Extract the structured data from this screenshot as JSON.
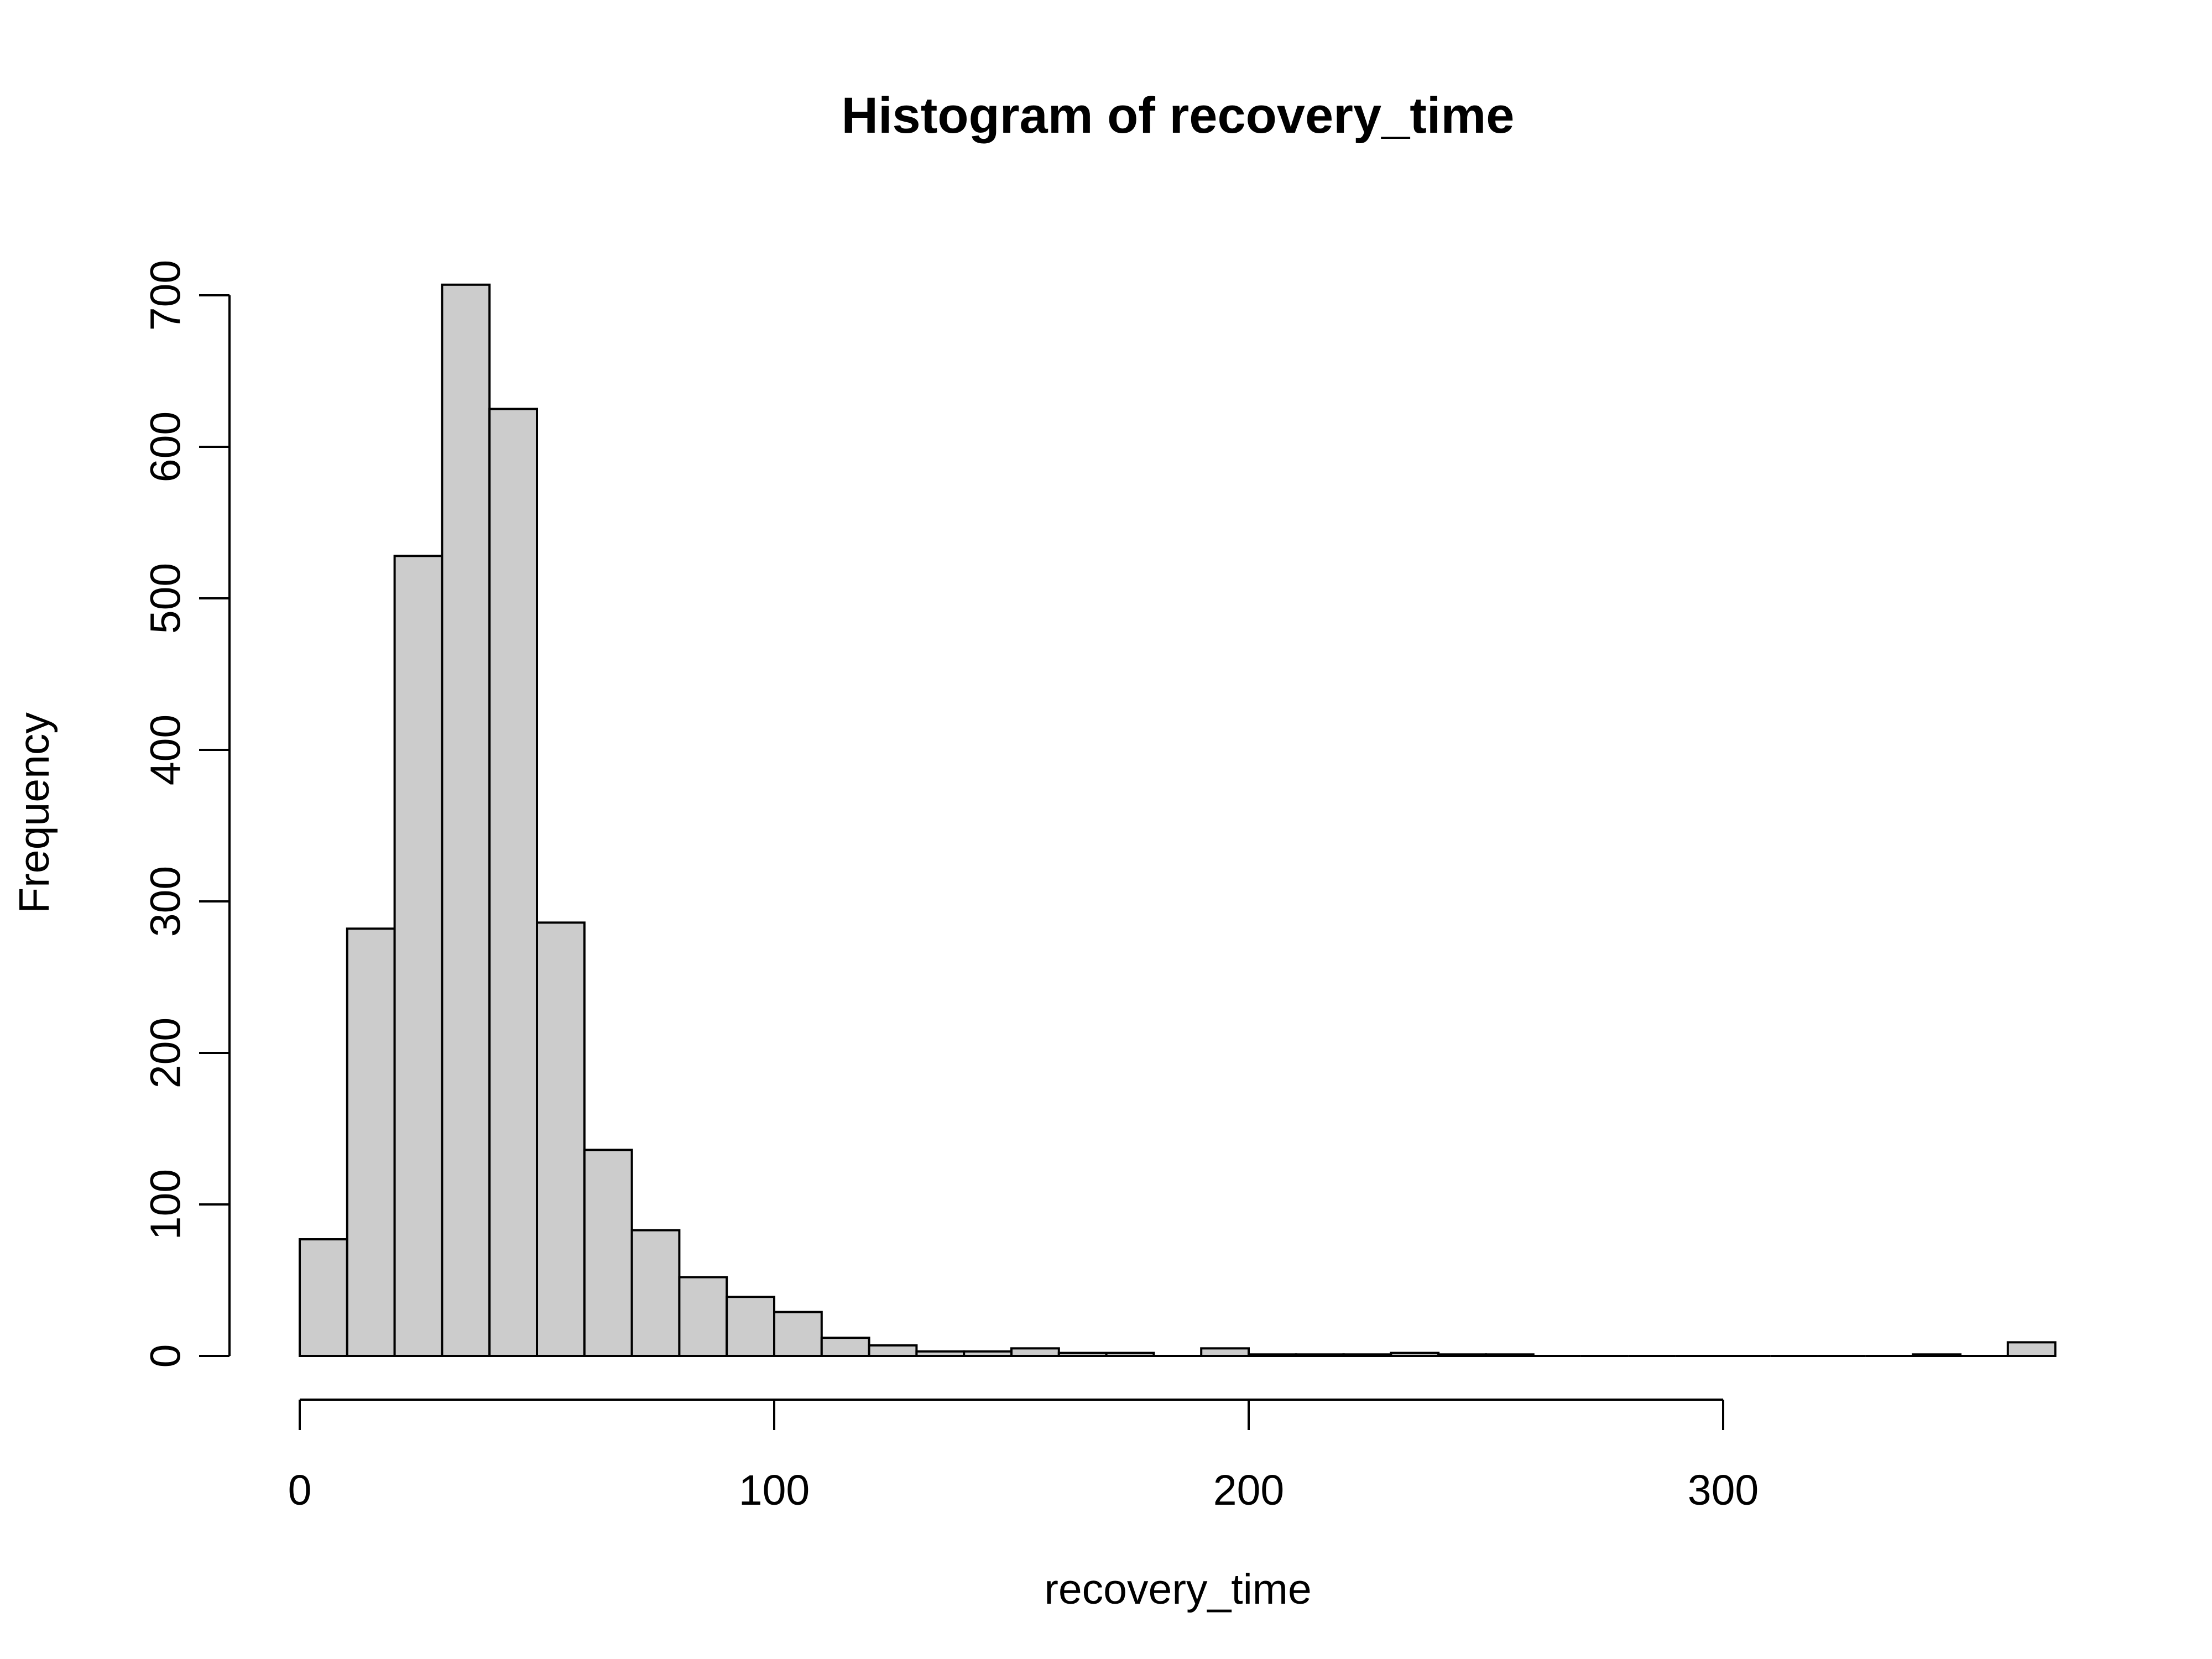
{
  "chart_data": {
    "type": "bar",
    "title": "Histogram of recovery_time",
    "xlabel": "recovery_time",
    "ylabel": "Frequency",
    "bin_width": 10,
    "bins": [
      {
        "start": 0,
        "end": 10,
        "count": 77
      },
      {
        "start": 10,
        "end": 20,
        "count": 282
      },
      {
        "start": 20,
        "end": 30,
        "count": 528
      },
      {
        "start": 30,
        "end": 40,
        "count": 707
      },
      {
        "start": 40,
        "end": 50,
        "count": 625
      },
      {
        "start": 50,
        "end": 60,
        "count": 286
      },
      {
        "start": 60,
        "end": 70,
        "count": 136
      },
      {
        "start": 70,
        "end": 80,
        "count": 83
      },
      {
        "start": 80,
        "end": 90,
        "count": 52
      },
      {
        "start": 90,
        "end": 100,
        "count": 39
      },
      {
        "start": 100,
        "end": 110,
        "count": 29
      },
      {
        "start": 110,
        "end": 120,
        "count": 12
      },
      {
        "start": 120,
        "end": 130,
        "count": 7
      },
      {
        "start": 130,
        "end": 140,
        "count": 3
      },
      {
        "start": 140,
        "end": 150,
        "count": 3
      },
      {
        "start": 150,
        "end": 160,
        "count": 5
      },
      {
        "start": 160,
        "end": 170,
        "count": 2
      },
      {
        "start": 170,
        "end": 180,
        "count": 2
      },
      {
        "start": 180,
        "end": 190,
        "count": 0
      },
      {
        "start": 190,
        "end": 200,
        "count": 5
      },
      {
        "start": 200,
        "end": 210,
        "count": 1
      },
      {
        "start": 210,
        "end": 220,
        "count": 1
      },
      {
        "start": 220,
        "end": 230,
        "count": 1
      },
      {
        "start": 230,
        "end": 240,
        "count": 2
      },
      {
        "start": 240,
        "end": 250,
        "count": 1
      },
      {
        "start": 250,
        "end": 260,
        "count": 1
      },
      {
        "start": 260,
        "end": 270,
        "count": 0
      },
      {
        "start": 270,
        "end": 280,
        "count": 0
      },
      {
        "start": 280,
        "end": 290,
        "count": 0
      },
      {
        "start": 290,
        "end": 300,
        "count": 0
      },
      {
        "start": 300,
        "end": 310,
        "count": 0
      },
      {
        "start": 310,
        "end": 320,
        "count": 0
      },
      {
        "start": 320,
        "end": 330,
        "count": 0
      },
      {
        "start": 330,
        "end": 340,
        "count": 0
      },
      {
        "start": 340,
        "end": 350,
        "count": 1
      },
      {
        "start": 350,
        "end": 360,
        "count": 0
      },
      {
        "start": 360,
        "end": 370,
        "count": 9
      }
    ],
    "x_ticks": [
      0,
      100,
      200,
      300
    ],
    "y_ticks": [
      0,
      100,
      200,
      300,
      400,
      500,
      600,
      700
    ],
    "xlim": [
      0,
      370
    ],
    "ylim": [
      0,
      707
    ],
    "grid": false,
    "colors": {
      "bar_fill": "#cccccc",
      "bar_stroke": "#000000",
      "axis": "#000000",
      "background": "#ffffff"
    }
  }
}
